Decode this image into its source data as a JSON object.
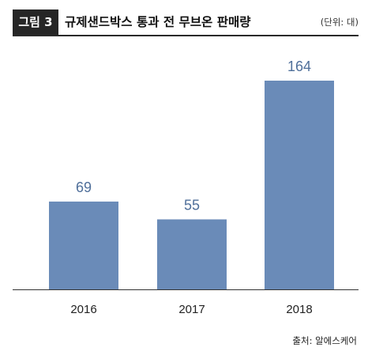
{
  "header": {
    "figure_label": "그림 3",
    "title": "규제샌드박스 통과 전 무브온 판매량",
    "unit": "(단위: 대)"
  },
  "source": "출처: 알에스케어",
  "colors": {
    "bar": "#6a8bb8",
    "value_label": "#4f6f9a",
    "axis": "#333333"
  },
  "chart_data": {
    "type": "bar",
    "title": "규제샌드박스 통과 전 무브온 판매량",
    "categories": [
      "2016",
      "2017",
      "2018"
    ],
    "values": [
      69,
      55,
      164
    ],
    "data_labels": [
      "69",
      "55",
      "164"
    ],
    "xlabel": "",
    "ylabel": "",
    "unit": "(단위: 대)",
    "ylim": [
      0,
      164
    ],
    "grid": false,
    "legend": "none"
  }
}
